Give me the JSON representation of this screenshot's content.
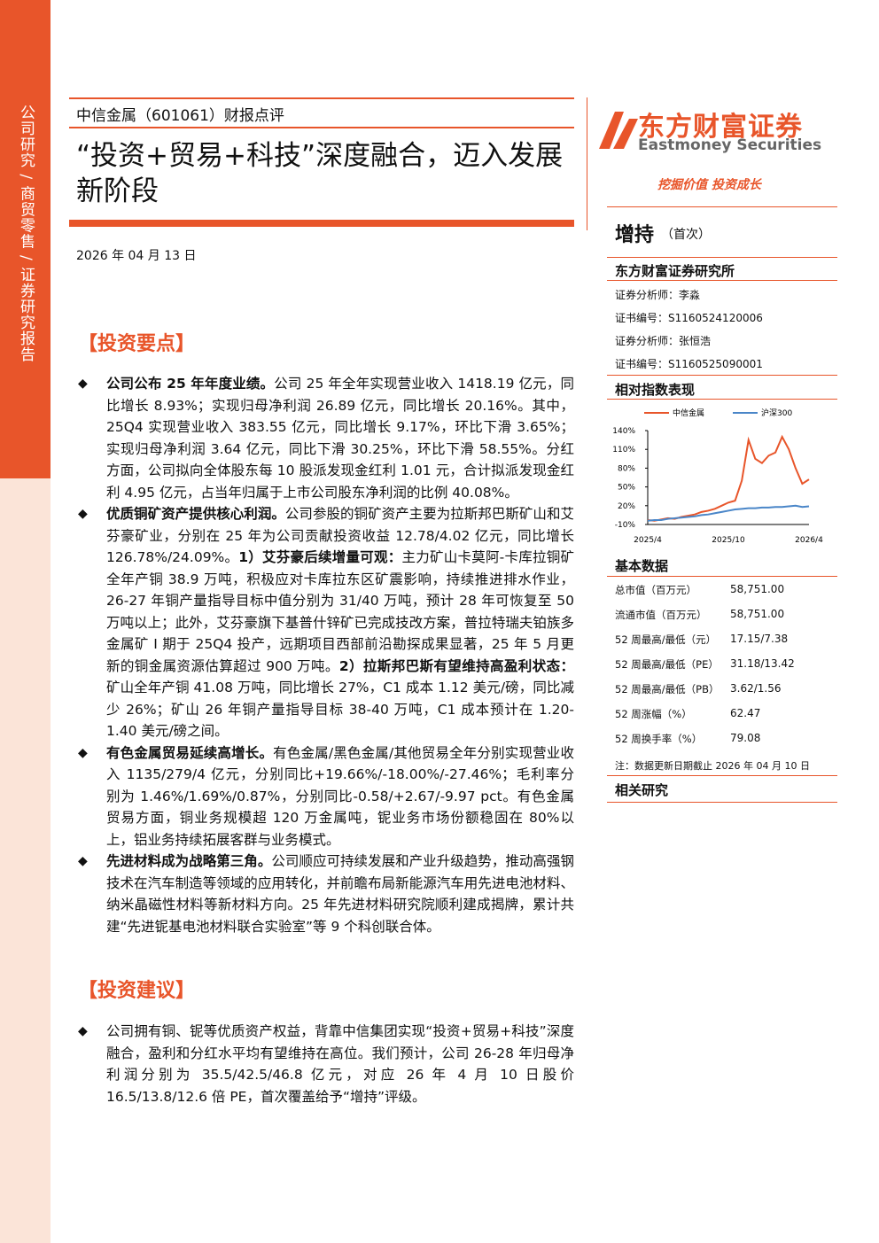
{
  "sidebar": "公司研究 / 商贸零售 / 证券研究报告",
  "header": {
    "subtitle": "中信金属（601061）财报点评",
    "title": "“投资+贸易+科技”深度融合，迈入发展新阶段",
    "date": "2026 年 04 月 13 日"
  },
  "sections": [
    {
      "heading": "【投资要点】",
      "bullets": [
        {
          "parts": [
            {
              "bold": "公司公布 25 年年度业绩。"
            },
            {
              "text": "公司 25 年全年实现营业收入 1418.19 亿元，同比增长 8.93%；实现归母净利润 26.89 亿元，同比增长 20.16%。其中，25Q4 实现营业收入 383.55 亿元，同比增长 9.17%，环比下滑 3.65%；实现归母净利润 3.64 亿元，同比下滑 30.25%，环比下滑 58.55%。分红方面，公司拟向全体股东每 10 股派发现金红利 1.01 元，合计拟派发现金红利 4.95 亿元，占当年归属于上市公司股东净利润的比例 40.08%。"
            }
          ]
        },
        {
          "parts": [
            {
              "bold": "优质铜矿资产提供核心利润。"
            },
            {
              "text": "公司参股的铜矿资产主要为拉斯邦巴斯矿山和艾芬豪矿业，分别在 25 年为公司贡献投资收益 12.78/4.02 亿元，同比增长 126.78%/24.09%。"
            },
            {
              "bold": "1）艾芬豪后续增量可观："
            },
            {
              "text": "主力矿山卡莫阿-卡库拉铜矿全年产铜 38.9 万吨，积极应对卡库拉东区矿震影响，持续推进排水作业，26-27 年铜产量指导目标中值分别为 31/40 万吨，预计 28 年可恢复至 50 万吨以上；此外，艾芬豪旗下基普什锌矿已完成技改方案，普拉特瑞夫铂族多金属矿 I 期于 25Q4 投产，远期项目西部前沿勘探成果显著，25 年 5 月更新的铜金属资源估算超过 900 万吨。"
            },
            {
              "bold": "2）拉斯邦巴斯有望维持高盈利状态："
            },
            {
              "text": "矿山全年产铜 41.08 万吨，同比增长 27%，C1 成本 1.12 美元/磅，同比减少 26%；矿山 26 年铜产量指导目标 38-40 万吨，C1 成本预计在 1.20-1.40 美元/磅之间。"
            }
          ]
        },
        {
          "parts": [
            {
              "bold": "有色金属贸易延续高增长。"
            },
            {
              "text": "有色金属/黑色金属/其他贸易全年分别实现营业收入 1135/279/4 亿元，分别同比+19.66%/-18.00%/-27.46%；毛利率分别为 1.46%/1.69%/0.87%，分别同比-0.58/+2.67/-9.97 pct。有色金属贸易方面，铜业务规模超 120 万金属吨，铌业务市场份额稳固在 80%以上，铝业务持续拓展客群与业务模式。"
            }
          ]
        },
        {
          "parts": [
            {
              "bold": "先进材料成为战略第三角。"
            },
            {
              "text": "公司顺应可持续发展和产业升级趋势，推动高强钢技术在汽车制造等领域的应用转化，并前瞻布局新能源汽车用先进电池材料、纳米晶磁性材料等新材料方向。25 年先进材料研究院顺利建成揭牌，累计共建“先进铌基电池材料联合实验室”等 9 个科创联合体。"
            }
          ]
        }
      ]
    },
    {
      "heading": "【投资建议】",
      "bullets": [
        {
          "parts": [
            {
              "text": "公司拥有铜、铌等优质资产权益，背靠中信集团实现“投资+贸易+科技”深度融合，盈利和分红水平均有望维持在高位。我们预计，公司 26-28 年归母净利润分别为 35.5/42.5/46.8 亿元，对应 26 年 4 月 10 日股价 16.5/13.8/12.6 倍 PE，首次覆盖给予“增持”评级。"
            }
          ]
        }
      ]
    }
  ],
  "brand": {
    "name": "东方财富证券",
    "name_en": "Eastmoney Securities",
    "slogan": "挖掘价值 投资成长"
  },
  "rating": {
    "rating": "增持",
    "note": "（首次）"
  },
  "institute": "东方财富证券研究所",
  "analysts": [
    "证券分析师：李淼",
    "证书编号：S1160524120006",
    "证券分析师：张恒浩",
    "证书编号：S1160525090001"
  ],
  "chart_heading": "相对指数表现",
  "chart_data": {
    "type": "line",
    "categories": [
      "2025/4",
      null,
      null,
      null,
      null,
      null,
      null,
      null,
      null,
      null,
      null,
      null,
      "2025/10",
      null,
      null,
      null,
      null,
      null,
      null,
      null,
      null,
      null,
      null,
      null,
      "2026/4"
    ],
    "series": [
      {
        "name": "中信金属",
        "color": "#e8552a",
        "values": [
          -3,
          -4,
          -2,
          0,
          -1,
          2,
          4,
          6,
          10,
          12,
          15,
          20,
          25,
          28,
          60,
          125,
          95,
          88,
          100,
          105,
          130,
          110,
          80,
          55,
          62
        ]
      },
      {
        "name": "沪深300",
        "color": "#4a86c8",
        "values": [
          -4,
          -3,
          -3,
          -1,
          0,
          1,
          2,
          3,
          5,
          6,
          8,
          10,
          12,
          14,
          15,
          16,
          16,
          17,
          17,
          18,
          18,
          19,
          20,
          18,
          19
        ]
      }
    ],
    "ylim": [
      -10,
      140
    ],
    "yticks": [
      {
        "value": -10,
        "label": "-10%"
      },
      {
        "value": 20,
        "label": "20%"
      },
      {
        "value": 50,
        "label": "50%"
      },
      {
        "value": 80,
        "label": "80%"
      },
      {
        "value": 110,
        "label": "110%"
      },
      {
        "value": 140,
        "label": "140%"
      }
    ]
  },
  "basic_data": {
    "title": "基本数据",
    "rows": [
      [
        "总市值（百万元）",
        "58,751.00"
      ],
      [
        "流通市值（百万元）",
        "58,751.00"
      ],
      [
        "52 周最高/最低（元）",
        "17.15/7.38"
      ],
      [
        "52 周最高/最低（PE）",
        "31.18/13.42"
      ],
      [
        "52 周最高/最低（PB）",
        "3.62/1.56"
      ],
      [
        "52 周涨幅（%）",
        "62.47"
      ],
      [
        "52 周换手率（%）",
        "79.08"
      ]
    ],
    "note": "注：数据更新日期截止 2026 年 04 月 10 日"
  },
  "related": "相关研究"
}
